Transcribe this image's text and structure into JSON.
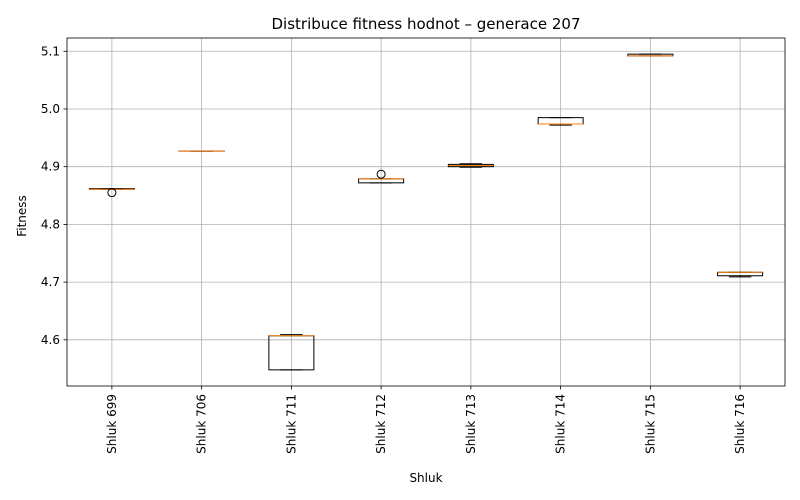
{
  "chart_data": {
    "type": "box",
    "title": "Distribuce fitness hodnot – generace 207",
    "xlabel": "Shluk",
    "ylabel": "Fitness",
    "ylim": [
      4.52,
      5.123
    ],
    "yticks": [
      4.6,
      4.7,
      4.8,
      4.9,
      5.0,
      5.1
    ],
    "ytick_labels": [
      "4.6",
      "4.7",
      "4.8",
      "4.9",
      "5.0",
      "5.1"
    ],
    "grid": true,
    "colors": {
      "box": "#000000",
      "median": "#ff7f0e",
      "grid": "#b0b0b0"
    },
    "categories": [
      "Shluk 699",
      "Shluk 706",
      "Shluk 711",
      "Shluk 712",
      "Shluk 713",
      "Shluk 714",
      "Shluk 715",
      "Shluk 716"
    ],
    "boxes": [
      {
        "whislo": 4.861,
        "q1": 4.861,
        "med": 4.861,
        "q3": 4.862,
        "whishi": 4.862,
        "fliers": [
          4.855
        ]
      },
      {
        "whislo": 4.927,
        "q1": 4.927,
        "med": 4.927,
        "q3": 4.927,
        "whishi": 4.927,
        "fliers": []
      },
      {
        "whislo": 4.548,
        "q1": 4.548,
        "med": 4.607,
        "q3": 4.607,
        "whishi": 4.609,
        "fliers": []
      },
      {
        "whislo": 4.872,
        "q1": 4.872,
        "med": 4.879,
        "q3": 4.879,
        "whishi": 4.879,
        "fliers": [
          4.887
        ]
      },
      {
        "whislo": 4.899,
        "q1": 4.9,
        "med": 4.902,
        "q3": 4.904,
        "whishi": 4.905,
        "fliers": []
      },
      {
        "whislo": 4.972,
        "q1": 4.974,
        "med": 4.974,
        "q3": 4.985,
        "whishi": 4.985,
        "fliers": []
      },
      {
        "whislo": 5.092,
        "q1": 5.092,
        "med": 5.092,
        "q3": 5.095,
        "whishi": 5.095,
        "fliers": []
      },
      {
        "whislo": 4.709,
        "q1": 4.711,
        "med": 4.717,
        "q3": 4.717,
        "whishi": 4.717,
        "fliers": []
      }
    ]
  }
}
